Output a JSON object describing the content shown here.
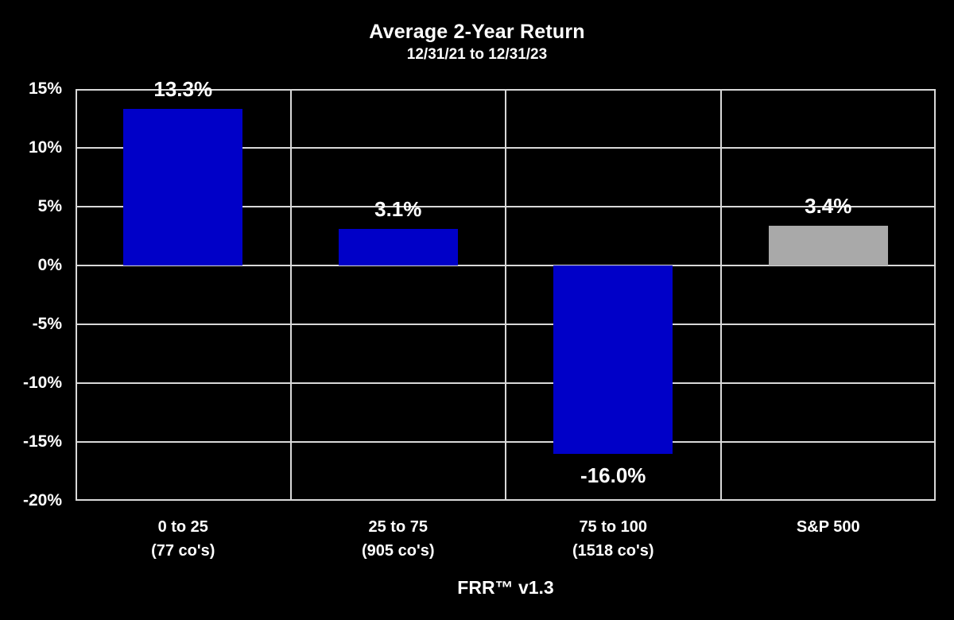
{
  "chart_data": {
    "type": "bar",
    "title": "Average 2-Year Return",
    "subtitle": "12/31/21 to 12/31/23",
    "xlabel": "FRR™ v1.3",
    "categories": [
      "0 to 25",
      "25 to 75",
      "75 to 100",
      "S&P 500"
    ],
    "category_sublabels": [
      "(77 co's)",
      "(905 co's)",
      "(1518 co's)",
      ""
    ],
    "values": [
      13.3,
      3.1,
      -16.0,
      3.4
    ],
    "value_labels": [
      "13.3%",
      "3.1%",
      "-16.0%",
      "3.4%"
    ],
    "bar_colors": [
      "#0000C8",
      "#0000C8",
      "#0000C8",
      "#A9A9A9"
    ],
    "ylim": [
      -20,
      15
    ],
    "ytick_step": 5,
    "ytick_labels": [
      "15%",
      "10%",
      "5%",
      "0%",
      "-5%",
      "-10%",
      "-15%",
      "-20%"
    ],
    "grid": true,
    "legend": "none",
    "colors": {
      "background": "#000000",
      "text": "#FFFFFF",
      "gridline": "#D9D9D9"
    }
  }
}
